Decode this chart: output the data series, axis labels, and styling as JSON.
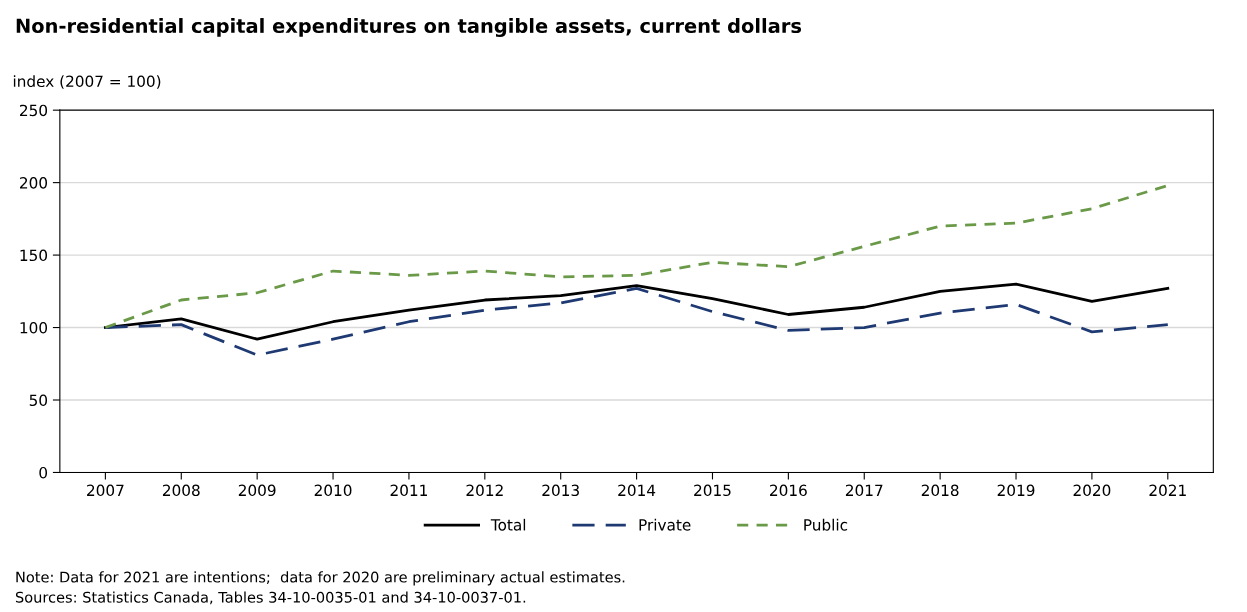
{
  "chart_data": {
    "type": "line",
    "title": "Non-residential capital expenditures on tangible assets, current dollars",
    "ylabel": "index (2007 = 100)",
    "categories": [
      "2007",
      "2008",
      "2009",
      "2010",
      "2011",
      "2012",
      "2013",
      "2014",
      "2015",
      "2016",
      "2017",
      "2018",
      "2019",
      "2020",
      "2021"
    ],
    "series": [
      {
        "name": "Total",
        "color": "#000000",
        "line_style": "solid",
        "values": [
          100,
          106,
          92,
          104,
          112,
          119,
          122,
          129,
          120,
          109,
          114,
          125,
          130,
          118,
          127
        ]
      },
      {
        "name": "Private",
        "color": "#1f3a73",
        "line_style": "dashed",
        "values": [
          100,
          102,
          81,
          92,
          104,
          112,
          117,
          127,
          111,
          98,
          100,
          110,
          116,
          97,
          102
        ]
      },
      {
        "name": "Public",
        "color": "#6a9a48",
        "line_style": "dotted",
        "values": [
          100,
          119,
          124,
          139,
          136,
          139,
          135,
          136,
          145,
          142,
          156,
          170,
          172,
          182,
          198
        ]
      }
    ],
    "ylim": [
      0,
      250
    ],
    "yticks": [
      0,
      50,
      100,
      150,
      200,
      250
    ],
    "grid": "y",
    "legend": "bottom",
    "marker": "none",
    "annotations": [
      "Note: Data for 2021 are intentions;  data for 2020 are preliminary actual estimates.",
      "Sources: Statistics Canada, Tables 34-10-0035-01 and 34-10-0037-01."
    ]
  }
}
